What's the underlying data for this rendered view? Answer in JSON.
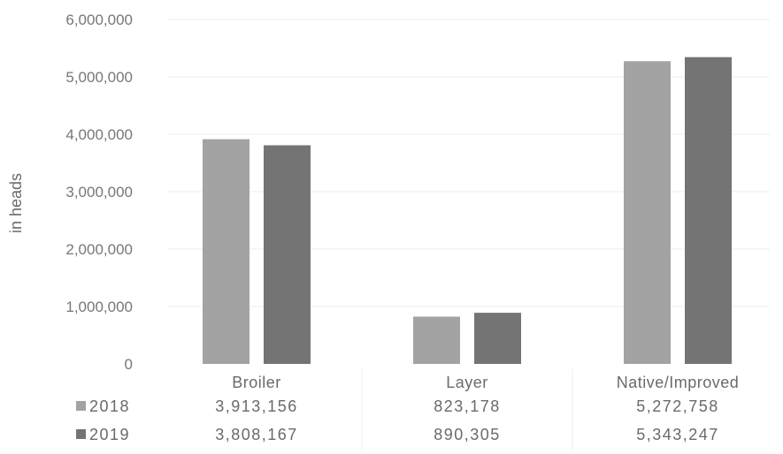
{
  "chart_data": {
    "type": "bar",
    "ylabel": "in heads",
    "ylim": [
      0,
      6000000
    ],
    "y_ticks": [
      0,
      1000000,
      2000000,
      3000000,
      4000000,
      5000000,
      6000000
    ],
    "y_tick_labels": [
      "0",
      "1,000,000",
      "2,000,000",
      "3,000,000",
      "4,000,000",
      "5,000,000",
      "6,000,000"
    ],
    "grid": true,
    "legend": "data-table-below",
    "categories": [
      "Broiler",
      "Layer",
      "Native/Improved"
    ],
    "series": [
      {
        "name": "2018",
        "color": "#a3a3a3",
        "values": [
          3913156,
          823178,
          5272758
        ],
        "value_labels": [
          "3,913,156",
          "823,178",
          "5,272,758"
        ]
      },
      {
        "name": "2019",
        "color": "#747474",
        "values": [
          3808167,
          890305,
          5343247
        ],
        "value_labels": [
          "3,808,167",
          "890,305",
          "5,343,247"
        ]
      }
    ]
  }
}
